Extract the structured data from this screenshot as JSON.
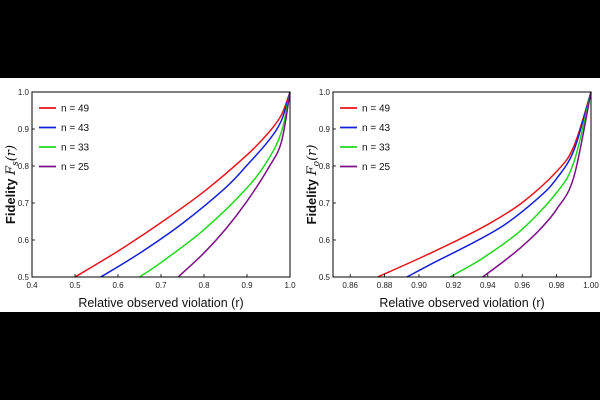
{
  "chart_data": [
    {
      "type": "line",
      "xlabel": "Relative observed violation (r)",
      "ylabel": "Fidelity",
      "ylabel_symbol": "F",
      "ylabel_sub": "s",
      "ylabel_arg": "(r)",
      "xlim": [
        0.4,
        1.0
      ],
      "ylim": [
        0.5,
        1.0
      ],
      "xticks": [
        "0.4",
        "0.5",
        "0.6",
        "0.7",
        "0.8",
        "0.9",
        "1.0"
      ],
      "xtick_values": [
        0.4,
        0.5,
        0.6,
        0.7,
        0.8,
        0.9,
        1.0
      ],
      "yticks": [
        "0.5",
        "0.6",
        "0.7",
        "0.8",
        "0.9",
        "1.0"
      ],
      "ytick_values": [
        0.5,
        0.6,
        0.7,
        0.8,
        0.9,
        1.0
      ],
      "grid": false,
      "legend_position": "top-left",
      "series": [
        {
          "name": "n = 49",
          "color": "#e8141b",
          "x": [
            0.5,
            0.6,
            0.7,
            0.8,
            0.9,
            0.95,
            0.98,
            1.0
          ],
          "y": [
            0.5,
            0.57,
            0.647,
            0.731,
            0.83,
            0.89,
            0.938,
            1.0
          ]
        },
        {
          "name": "n = 43",
          "color": "#1521d8",
          "x": [
            0.56,
            0.65,
            0.75,
            0.85,
            0.9,
            0.95,
            0.98,
            1.0
          ],
          "y": [
            0.5,
            0.564,
            0.645,
            0.741,
            0.802,
            0.868,
            0.923,
            1.0
          ]
        },
        {
          "name": "n = 33",
          "color": "#22d81c",
          "x": [
            0.65,
            0.7,
            0.8,
            0.9,
            0.95,
            0.98,
            1.0
          ],
          "y": [
            0.5,
            0.539,
            0.628,
            0.741,
            0.819,
            0.892,
            1.0
          ]
        },
        {
          "name": "n = 25",
          "color": "#7a0f86",
          "x": [
            0.74,
            0.8,
            0.85,
            0.9,
            0.95,
            0.98,
            1.0
          ],
          "y": [
            0.5,
            0.565,
            0.629,
            0.705,
            0.795,
            0.865,
            1.0
          ]
        }
      ]
    },
    {
      "type": "line",
      "xlabel": "Relative observed violation (r)",
      "ylabel": "Fidelity",
      "ylabel_symbol": "F",
      "ylabel_sub": "o",
      "ylabel_arg": "(r)",
      "xlim": [
        0.85,
        1.0
      ],
      "ylim": [
        0.5,
        1.0
      ],
      "xticks": [
        "0.86",
        "0.88",
        "0.90",
        "0.92",
        "0.94",
        "0.96",
        "0.98",
        "1.00"
      ],
      "xtick_values": [
        0.86,
        0.88,
        0.9,
        0.92,
        0.94,
        0.96,
        0.98,
        1.0
      ],
      "yticks": [
        "0.5",
        "0.6",
        "0.7",
        "0.8",
        "0.9",
        "1.0"
      ],
      "ytick_values": [
        0.5,
        0.6,
        0.7,
        0.8,
        0.9,
        1.0
      ],
      "grid": false,
      "legend_position": "top-left",
      "series": [
        {
          "name": "n = 49",
          "color": "#e8141b",
          "x": [
            0.876,
            0.9,
            0.92,
            0.94,
            0.96,
            0.98,
            0.99,
            1.0
          ],
          "y": [
            0.5,
            0.55,
            0.594,
            0.642,
            0.701,
            0.785,
            0.853,
            1.0
          ]
        },
        {
          "name": "n = 43",
          "color": "#1521d8",
          "x": [
            0.893,
            0.91,
            0.93,
            0.95,
            0.97,
            0.98,
            0.99,
            1.0
          ],
          "y": [
            0.5,
            0.542,
            0.589,
            0.642,
            0.716,
            0.766,
            0.842,
            1.0
          ]
        },
        {
          "name": "n = 33",
          "color": "#22d81c",
          "x": [
            0.918,
            0.93,
            0.94,
            0.96,
            0.98,
            0.99,
            1.0
          ],
          "y": [
            0.5,
            0.531,
            0.56,
            0.629,
            0.728,
            0.81,
            1.0
          ]
        },
        {
          "name": "n = 25",
          "color": "#7a0f86",
          "x": [
            0.937,
            0.95,
            0.96,
            0.97,
            0.98,
            0.99,
            1.0
          ],
          "y": [
            0.5,
            0.545,
            0.583,
            0.627,
            0.683,
            0.77,
            1.0
          ]
        }
      ]
    }
  ]
}
